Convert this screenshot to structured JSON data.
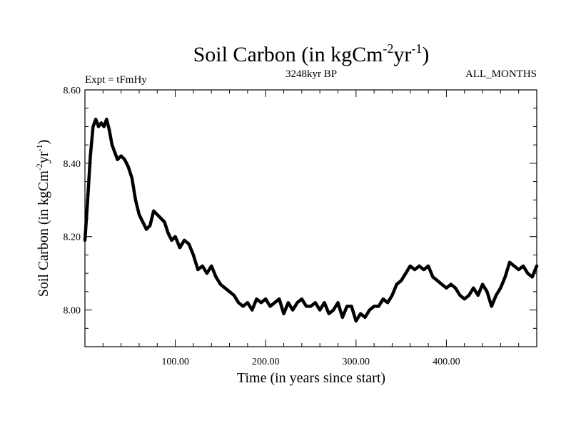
{
  "chart_data": {
    "type": "line",
    "title_main": "Soil Carbon (in kgCm",
    "title_sup1": "-2",
    "title_mid": "yr",
    "title_sup2": "-1",
    "title_end": ")",
    "left_label": "Expt = tFmHy",
    "center_label": "3248kyr BP",
    "right_label": "ALL_MONTHS",
    "xlabel": "Time (in years since start)",
    "ylabel_main": "Soil Carbon (in kgCm",
    "ylabel_sup1": "-2",
    "ylabel_mid": "yr",
    "ylabel_sup2": "-1",
    "ylabel_end": ")",
    "xlim": [
      0,
      500
    ],
    "ylim": [
      7.9,
      8.6
    ],
    "xticks": [
      {
        "value": 100,
        "label": "100.00"
      },
      {
        "value": 200,
        "label": "200.00"
      },
      {
        "value": 300,
        "label": "300.00"
      },
      {
        "value": 400,
        "label": "400.00"
      }
    ],
    "yticks": [
      {
        "value": 8.0,
        "label": "8.00"
      },
      {
        "value": 8.2,
        "label": "8.20"
      },
      {
        "value": 8.4,
        "label": "8.40"
      },
      {
        "value": 8.6,
        "label": "8.60"
      }
    ],
    "series": [
      {
        "color": "#000000",
        "x": [
          0,
          3,
          6,
          9,
          12,
          15,
          18,
          21,
          24,
          27,
          30,
          33,
          36,
          40,
          44,
          48,
          52,
          56,
          60,
          64,
          68,
          72,
          76,
          80,
          84,
          88,
          92,
          96,
          100,
          105,
          110,
          115,
          120,
          125,
          130,
          135,
          140,
          145,
          150,
          155,
          160,
          165,
          170,
          175,
          180,
          185,
          190,
          195,
          200,
          205,
          210,
          215,
          220,
          225,
          230,
          235,
          240,
          245,
          250,
          255,
          260,
          265,
          270,
          275,
          280,
          285,
          290,
          295,
          300,
          305,
          310,
          315,
          320,
          325,
          330,
          335,
          340,
          345,
          350,
          355,
          360,
          365,
          370,
          375,
          380,
          385,
          390,
          395,
          400,
          405,
          410,
          415,
          420,
          425,
          430,
          435,
          440,
          445,
          450,
          455,
          460,
          465,
          470,
          475,
          480,
          485,
          490,
          495,
          500
        ],
        "y": [
          8.19,
          8.3,
          8.42,
          8.5,
          8.52,
          8.5,
          8.51,
          8.5,
          8.52,
          8.49,
          8.45,
          8.43,
          8.41,
          8.42,
          8.41,
          8.39,
          8.36,
          8.3,
          8.26,
          8.24,
          8.22,
          8.23,
          8.27,
          8.26,
          8.25,
          8.24,
          8.21,
          8.19,
          8.2,
          8.17,
          8.19,
          8.18,
          8.15,
          8.11,
          8.12,
          8.1,
          8.12,
          8.09,
          8.07,
          8.06,
          8.05,
          8.04,
          8.02,
          8.01,
          8.02,
          8.0,
          8.03,
          8.02,
          8.03,
          8.01,
          8.02,
          8.03,
          7.99,
          8.02,
          8.0,
          8.02,
          8.03,
          8.01,
          8.01,
          8.02,
          8.0,
          8.02,
          7.99,
          8.0,
          8.02,
          7.98,
          8.01,
          8.01,
          7.97,
          7.99,
          7.98,
          8.0,
          8.01,
          8.01,
          8.03,
          8.02,
          8.04,
          8.07,
          8.08,
          8.1,
          8.12,
          8.11,
          8.12,
          8.11,
          8.12,
          8.09,
          8.08,
          8.07,
          8.06,
          8.07,
          8.06,
          8.04,
          8.03,
          8.04,
          8.06,
          8.04,
          8.07,
          8.05,
          8.01,
          8.04,
          8.06,
          8.09,
          8.13,
          8.12,
          8.11,
          8.12,
          8.1,
          8.09,
          8.12
        ]
      }
    ]
  }
}
